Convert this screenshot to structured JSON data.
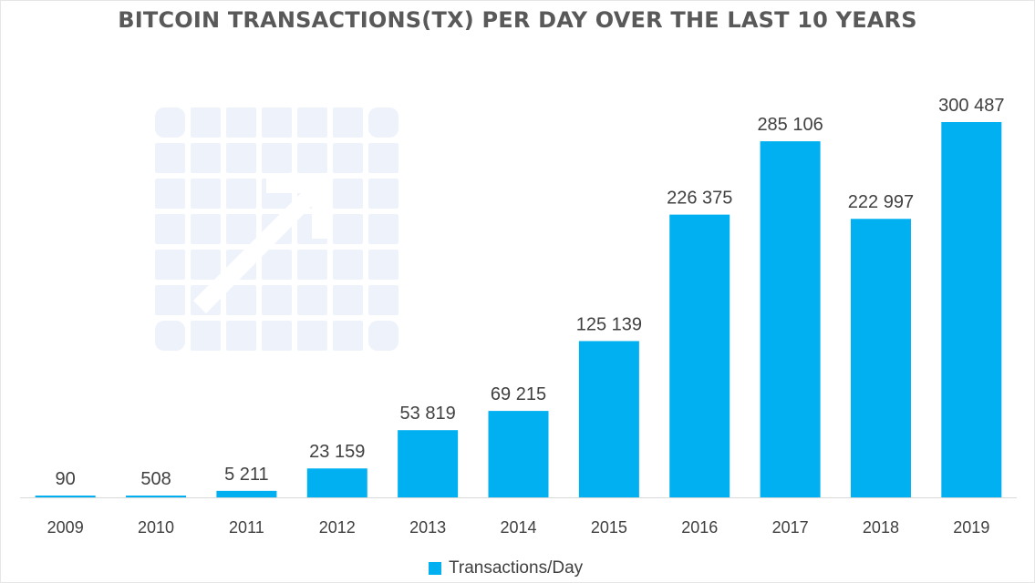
{
  "chart_data": {
    "type": "bar",
    "title": "BITCOIN TRANSACTIONS(TX) PER DAY OVER THE LAST 10 YEARS",
    "categories": [
      "2009",
      "2010",
      "2011",
      "2012",
      "2013",
      "2014",
      "2015",
      "2016",
      "2017",
      "2018",
      "2019"
    ],
    "series": [
      {
        "name": "Transactions/Day",
        "values": [
          90,
          508,
          5211,
          23159,
          53819,
          69215,
          125139,
          226375,
          285106,
          222997,
          300487
        ],
        "labels": [
          "90",
          "508",
          "5 211",
          "23 159",
          "53 819",
          "69 215",
          "125 139",
          "226 375",
          "285 106",
          "222 997",
          "300 487"
        ],
        "color": "#00b0f0"
      }
    ],
    "xlabel": "",
    "ylabel": "",
    "ylim": [
      0,
      300487
    ],
    "grid": false,
    "legend_position": "bottom"
  },
  "colors": {
    "bar": "#00b0f0",
    "title": "#595959",
    "text": "#404040",
    "axis": "#d9d9d9",
    "watermark": "#eef2fb"
  },
  "watermark": {
    "icon": "chart-growth-icon"
  }
}
